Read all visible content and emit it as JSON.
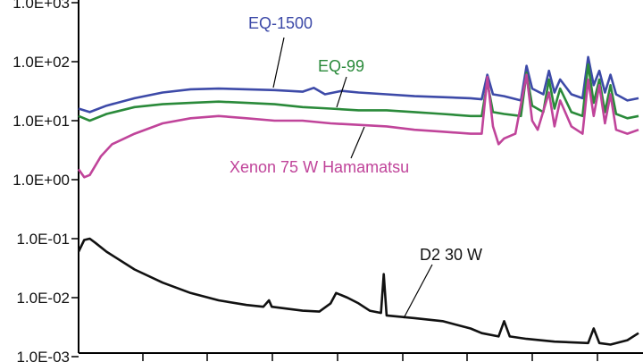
{
  "chart_data": {
    "type": "line",
    "title": "",
    "xlabel": "",
    "ylabel": "",
    "y_scale": "log",
    "ylim": [
      0.001,
      1000
    ],
    "xlim": [
      0,
      100
    ],
    "x_tick_count": 9,
    "y_ticks": [
      "1.0E-03",
      "1.0E-02",
      "1.0E-01",
      "1.0E+00",
      "1.0E+01",
      "1.0E+02",
      "1.0E+03"
    ],
    "grid": false,
    "legend": "none (series labeled directly on plot)",
    "series": [
      {
        "name": "EQ-1500",
        "color": "#3d4aa8",
        "points": [
          [
            0,
            16
          ],
          [
            2,
            14
          ],
          [
            5,
            18
          ],
          [
            10,
            24
          ],
          [
            15,
            30
          ],
          [
            20,
            34
          ],
          [
            25,
            35
          ],
          [
            30,
            34
          ],
          [
            35,
            33
          ],
          [
            40,
            31
          ],
          [
            42,
            36
          ],
          [
            44,
            28
          ],
          [
            47,
            32
          ],
          [
            50,
            30
          ],
          [
            55,
            28
          ],
          [
            60,
            26
          ],
          [
            65,
            25
          ],
          [
            70,
            24
          ],
          [
            72,
            23
          ],
          [
            73,
            60
          ],
          [
            74,
            28
          ],
          [
            76,
            26
          ],
          [
            79,
            22
          ],
          [
            80,
            85
          ],
          [
            81,
            35
          ],
          [
            83,
            28
          ],
          [
            84,
            70
          ],
          [
            85,
            30
          ],
          [
            86,
            50
          ],
          [
            88,
            28
          ],
          [
            90,
            24
          ],
          [
            91,
            120
          ],
          [
            92,
            40
          ],
          [
            93,
            70
          ],
          [
            94,
            30
          ],
          [
            95,
            60
          ],
          [
            96,
            28
          ],
          [
            98,
            22
          ],
          [
            100,
            24
          ]
        ]
      },
      {
        "name": "EQ-99",
        "color": "#2a8a3a",
        "points": [
          [
            0,
            12
          ],
          [
            2,
            10
          ],
          [
            5,
            13
          ],
          [
            10,
            17
          ],
          [
            15,
            19
          ],
          [
            20,
            20
          ],
          [
            25,
            21
          ],
          [
            30,
            20
          ],
          [
            35,
            19
          ],
          [
            40,
            17
          ],
          [
            45,
            16
          ],
          [
            50,
            15
          ],
          [
            55,
            15
          ],
          [
            60,
            14
          ],
          [
            65,
            13
          ],
          [
            70,
            12
          ],
          [
            72,
            12
          ],
          [
            73,
            45
          ],
          [
            74,
            14
          ],
          [
            76,
            13
          ],
          [
            79,
            12
          ],
          [
            80,
            65
          ],
          [
            81,
            18
          ],
          [
            83,
            14
          ],
          [
            84,
            50
          ],
          [
            85,
            16
          ],
          [
            86,
            35
          ],
          [
            88,
            14
          ],
          [
            90,
            12
          ],
          [
            91,
            90
          ],
          [
            92,
            20
          ],
          [
            93,
            50
          ],
          [
            94,
            14
          ],
          [
            95,
            40
          ],
          [
            96,
            13
          ],
          [
            98,
            11
          ],
          [
            100,
            12
          ]
        ]
      },
      {
        "name": "Xenon 75 W Hamamatsu",
        "color": "#c0449a",
        "points": [
          [
            0,
            1.5
          ],
          [
            1,
            1.1
          ],
          [
            2,
            1.2
          ],
          [
            4,
            2.5
          ],
          [
            6,
            4
          ],
          [
            10,
            6
          ],
          [
            15,
            9
          ],
          [
            20,
            11
          ],
          [
            25,
            12
          ],
          [
            30,
            11
          ],
          [
            35,
            10
          ],
          [
            40,
            10
          ],
          [
            45,
            9
          ],
          [
            50,
            8.5
          ],
          [
            55,
            8
          ],
          [
            60,
            7
          ],
          [
            65,
            6.5
          ],
          [
            70,
            6
          ],
          [
            72,
            6
          ],
          [
            73,
            55
          ],
          [
            74,
            8
          ],
          [
            75,
            4
          ],
          [
            76,
            5
          ],
          [
            78,
            6
          ],
          [
            80,
            60
          ],
          [
            81,
            10
          ],
          [
            82,
            7
          ],
          [
            84,
            30
          ],
          [
            85,
            8
          ],
          [
            86,
            22
          ],
          [
            88,
            8
          ],
          [
            90,
            6
          ],
          [
            91,
            50
          ],
          [
            92,
            12
          ],
          [
            93,
            40
          ],
          [
            94,
            9
          ],
          [
            95,
            28
          ],
          [
            96,
            7
          ],
          [
            98,
            6
          ],
          [
            100,
            7
          ]
        ]
      },
      {
        "name": "D2 30 W",
        "color": "#111111",
        "points": [
          [
            0,
            0.06
          ],
          [
            1,
            0.095
          ],
          [
            2,
            0.1
          ],
          [
            3,
            0.085
          ],
          [
            5,
            0.06
          ],
          [
            10,
            0.03
          ],
          [
            15,
            0.018
          ],
          [
            20,
            0.012
          ],
          [
            25,
            0.009
          ],
          [
            30,
            0.0075
          ],
          [
            33,
            0.007
          ],
          [
            34,
            0.009
          ],
          [
            34.5,
            0.007
          ],
          [
            40,
            0.006
          ],
          [
            43,
            0.0058
          ],
          [
            45,
            0.008
          ],
          [
            46,
            0.012
          ],
          [
            48,
            0.01
          ],
          [
            50,
            0.008
          ],
          [
            52,
            0.006
          ],
          [
            54,
            0.0055
          ],
          [
            54.5,
            0.025
          ],
          [
            55,
            0.005
          ],
          [
            60,
            0.0045
          ],
          [
            65,
            0.004
          ],
          [
            70,
            0.003
          ],
          [
            72,
            0.0025
          ],
          [
            75,
            0.0022
          ],
          [
            76,
            0.004
          ],
          [
            77,
            0.0022
          ],
          [
            80,
            0.002
          ],
          [
            85,
            0.0018
          ],
          [
            91,
            0.0017
          ],
          [
            92,
            0.003
          ],
          [
            93,
            0.0017
          ],
          [
            95,
            0.0016
          ],
          [
            98,
            0.0019
          ],
          [
            100,
            0.0025
          ]
        ]
      }
    ],
    "annotations": [
      {
        "text": "EQ-1500",
        "series": "EQ-1500"
      },
      {
        "text": "EQ-99",
        "series": "EQ-99"
      },
      {
        "text": "Xenon 75 W Hamamatsu",
        "series": "Xenon 75 W Hamamatsu"
      },
      {
        "text": "D2 30 W",
        "series": "D2 30 W"
      }
    ]
  }
}
